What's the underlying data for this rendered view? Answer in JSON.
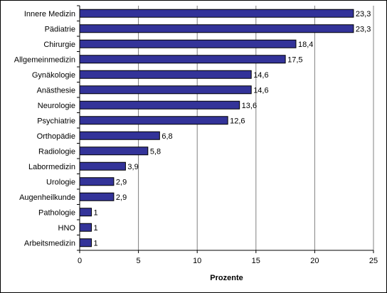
{
  "chart_data": {
    "type": "bar",
    "orientation": "horizontal",
    "categories": [
      "Innere Medizin",
      "Pädiatrie",
      "Chirurgie",
      "Allgemeinmedizin",
      "Gynäkologie",
      "Anästhesie",
      "Neurologie",
      "Psychiatrie",
      "Orthopädie",
      "Radiologie",
      "Labormedizin",
      "Urologie",
      "Augenheilkunde",
      "Pathologie",
      "HNO",
      "Arbeitsmedizin"
    ],
    "values": [
      23.3,
      23.3,
      18.4,
      17.5,
      14.6,
      14.6,
      13.6,
      12.6,
      6.8,
      5.8,
      3.9,
      2.9,
      2.9,
      1,
      1,
      1
    ],
    "value_labels": [
      "23,3",
      "23,3",
      "18,4",
      "17,5",
      "14,6",
      "14,6",
      "13,6",
      "12,6",
      "6,8",
      "5,8",
      "3,9",
      "2,9",
      "2,9",
      "1",
      "1",
      "1"
    ],
    "xlabel": "Prozente",
    "xlim": [
      0,
      25
    ],
    "xticks": [
      0,
      5,
      10,
      15,
      20,
      25
    ],
    "grid": true,
    "bar_color": "#333399",
    "grid_color": "#808080"
  }
}
